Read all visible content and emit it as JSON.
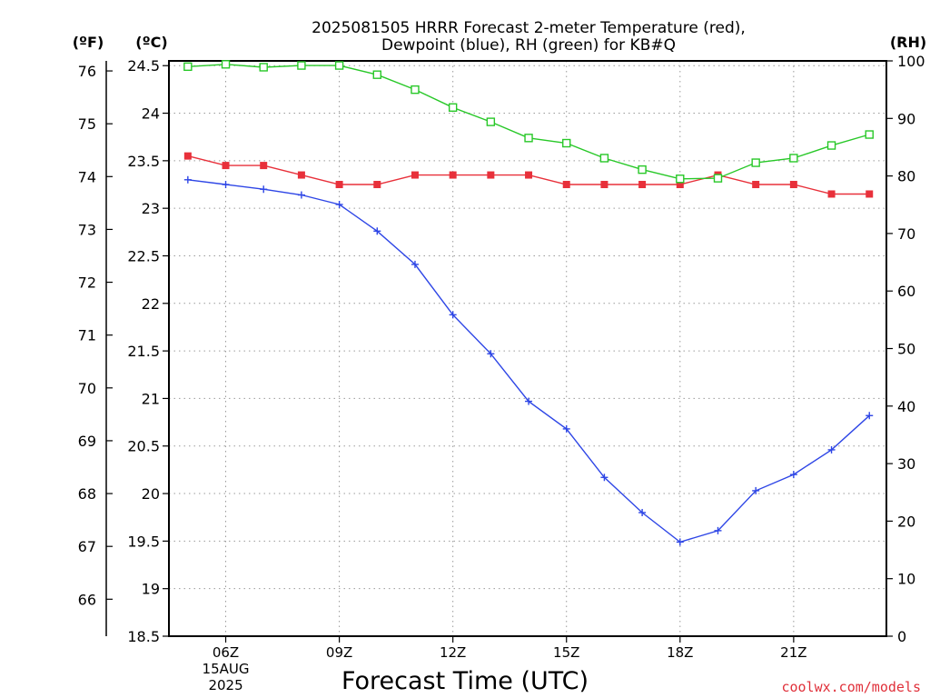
{
  "chart_data": {
    "type": "line",
    "title_line1": "2025081505 HRRR Forecast 2-meter Temperature (red),",
    "title_line2": "Dewpoint (blue), RH (green) for KB#Q",
    "xlabel": "Forecast Time (UTC)",
    "y_left_outer_unit": "(ºF)",
    "y_left_inner_unit": "(ºC)",
    "y_right_unit": "(RH)",
    "ylim_c": [
      18.5,
      24.55
    ],
    "ylim_rh": [
      0,
      100
    ],
    "yticks_c": [
      "18.5",
      "19",
      "19.5",
      "20",
      "20.5",
      "21",
      "21.5",
      "22",
      "22.5",
      "23",
      "23.5",
      "24",
      "24.5"
    ],
    "yticks_f": [
      "66",
      "67",
      "68",
      "69",
      "70",
      "71",
      "72",
      "73",
      "74",
      "75",
      "76"
    ],
    "yticks_rh": [
      "0",
      "10",
      "20",
      "30",
      "40",
      "50",
      "60",
      "70",
      "80",
      "90",
      "100"
    ],
    "x_hours": [
      5,
      6,
      7,
      8,
      9,
      10,
      11,
      12,
      13,
      14,
      15,
      16,
      17,
      18,
      19,
      20,
      21,
      22,
      23
    ],
    "xticks": [
      {
        "hour": 6,
        "label": "06Z",
        "sub1": "15AUG",
        "sub2": "2025"
      },
      {
        "hour": 9,
        "label": "09Z"
      },
      {
        "hour": 12,
        "label": "12Z"
      },
      {
        "hour": 15,
        "label": "15Z"
      },
      {
        "hour": 18,
        "label": "18Z"
      },
      {
        "hour": 21,
        "label": "21Z"
      }
    ],
    "series": [
      {
        "name": "Temperature",
        "color": "#e8303a",
        "marker": "filled-square",
        "axis": "C",
        "values": [
          23.55,
          23.45,
          23.45,
          23.35,
          23.25,
          23.25,
          23.35,
          23.35,
          23.35,
          23.35,
          23.25,
          23.25,
          23.25,
          23.25,
          23.35,
          23.25,
          23.25,
          23.15,
          23.15
        ]
      },
      {
        "name": "Dewpoint",
        "color": "#2e46e6",
        "marker": "plus",
        "axis": "C",
        "values": [
          23.3,
          23.25,
          23.2,
          23.14,
          23.04,
          22.76,
          22.41,
          21.88,
          21.47,
          20.97,
          20.68,
          20.17,
          19.8,
          19.49,
          19.61,
          20.03,
          20.2,
          20.46,
          20.82
        ]
      },
      {
        "name": "RH",
        "color": "#28c828",
        "marker": "open-square",
        "axis": "RH",
        "values": [
          99,
          99.4,
          98.9,
          99.2,
          99.2,
          97.6,
          95,
          91.9,
          89.4,
          86.6,
          85.7,
          83.1,
          81.1,
          79.5,
          79.6,
          82.3,
          83.1,
          85.3,
          87.2
        ]
      }
    ],
    "grid": true
  },
  "credit": "coolwx.com/models"
}
